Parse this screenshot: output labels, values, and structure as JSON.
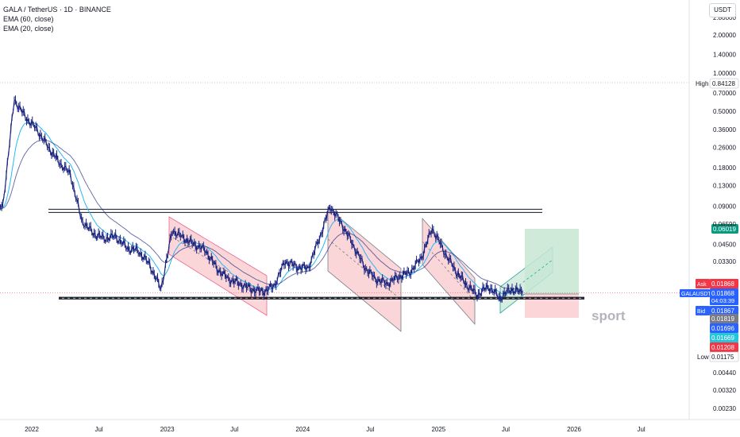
{
  "legend": {
    "title": "GALA / TetherUS · 1D · BINANCE",
    "ema60": "EMA (60, close)",
    "ema20": "EMA (20, close)"
  },
  "currency_button": "USDT",
  "watermark": "sport",
  "colors": {
    "candle": "#1a237e",
    "ema_fast": "#29b6f6",
    "ema_slow": "#1a237e",
    "channel_fill": "#f8c5c8",
    "target_fill": "#c8e6d4",
    "stop_fill": "#fbd0d3",
    "high_line": "#b2b5be",
    "ask": "#f23645",
    "bid": "#2962ff"
  },
  "chart_data": {
    "type": "line",
    "y_scale": "log",
    "ylim": [
      0.0019,
      2.9
    ],
    "x_tick_labels": [
      "2022",
      "Jul",
      "2023",
      "Jul",
      "2024",
      "Jul",
      "2025",
      "Jul",
      "2026",
      "Jul"
    ],
    "y_tick_labels": [
      "2.00000",
      "1.40000",
      "1.00000",
      "0.70000",
      "0.50000",
      "0.36000",
      "0.26000",
      "0.18000",
      "0.13000",
      "0.09000",
      "0.04500",
      "0.03300",
      "0.00440",
      "0.00320",
      "0.00230"
    ],
    "y_tick_values": [
      2.0,
      1.4,
      1.0,
      0.7,
      0.5,
      0.36,
      0.26,
      0.18,
      0.13,
      0.09,
      0.045,
      0.033,
      0.0044,
      0.0032,
      0.0023
    ],
    "price_series": {
      "name": "GALA / TetherUS",
      "x": [
        "2021-09",
        "2021-10",
        "2021-11",
        "2021-12",
        "2022-01",
        "2022-02",
        "2022-03",
        "2022-04",
        "2022-05",
        "2022-06",
        "2022-07",
        "2022-08",
        "2022-09",
        "2022-10",
        "2022-11",
        "2022-12",
        "2023-01",
        "2023-02",
        "2023-03",
        "2023-04",
        "2023-05",
        "2023-06",
        "2023-07",
        "2023-08",
        "2023-09",
        "2023-10",
        "2023-11",
        "2023-12",
        "2024-01",
        "2024-02",
        "2024-03",
        "2024-04",
        "2024-05",
        "2024-06",
        "2024-07",
        "2024-08",
        "2024-09",
        "2024-10",
        "2024-11",
        "2024-12",
        "2025-01",
        "2025-02",
        "2025-03",
        "2025-04",
        "2025-05",
        "2025-06",
        "2025-07",
        "2025-08"
      ],
      "y": [
        0.085,
        0.09,
        0.62,
        0.45,
        0.36,
        0.26,
        0.2,
        0.16,
        0.07,
        0.055,
        0.05,
        0.052,
        0.042,
        0.04,
        0.031,
        0.02,
        0.058,
        0.05,
        0.045,
        0.04,
        0.029,
        0.024,
        0.022,
        0.02,
        0.019,
        0.021,
        0.033,
        0.03,
        0.029,
        0.05,
        0.09,
        0.065,
        0.045,
        0.03,
        0.024,
        0.022,
        0.025,
        0.027,
        0.035,
        0.06,
        0.04,
        0.028,
        0.022,
        0.018,
        0.021,
        0.017,
        0.02,
        0.01868
      ]
    },
    "horizontal_lines": [
      {
        "label": "High",
        "value": 0.84128
      },
      {
        "value": 0.0825
      },
      {
        "value": 0.0172
      },
      {
        "value": 0.0167
      }
    ],
    "price_labels": {
      "high": {
        "label": "High",
        "value": "0.84128"
      },
      "target": {
        "value": "0.06019"
      },
      "ask": {
        "label": "Ask",
        "value": "0.01868"
      },
      "last": {
        "label": "GALAUSDT",
        "value": "0.01868",
        "countdown": "04:03:39"
      },
      "bid": {
        "label": "Bid",
        "value": "0.01867"
      },
      "levels": [
        "0.01819",
        "0.01696",
        "0.01669",
        "0.01208"
      ],
      "low": {
        "label": "Low",
        "value": "0.01175"
      }
    },
    "axis_labels_partial": [
      "0.06590",
      "2.80000"
    ]
  }
}
